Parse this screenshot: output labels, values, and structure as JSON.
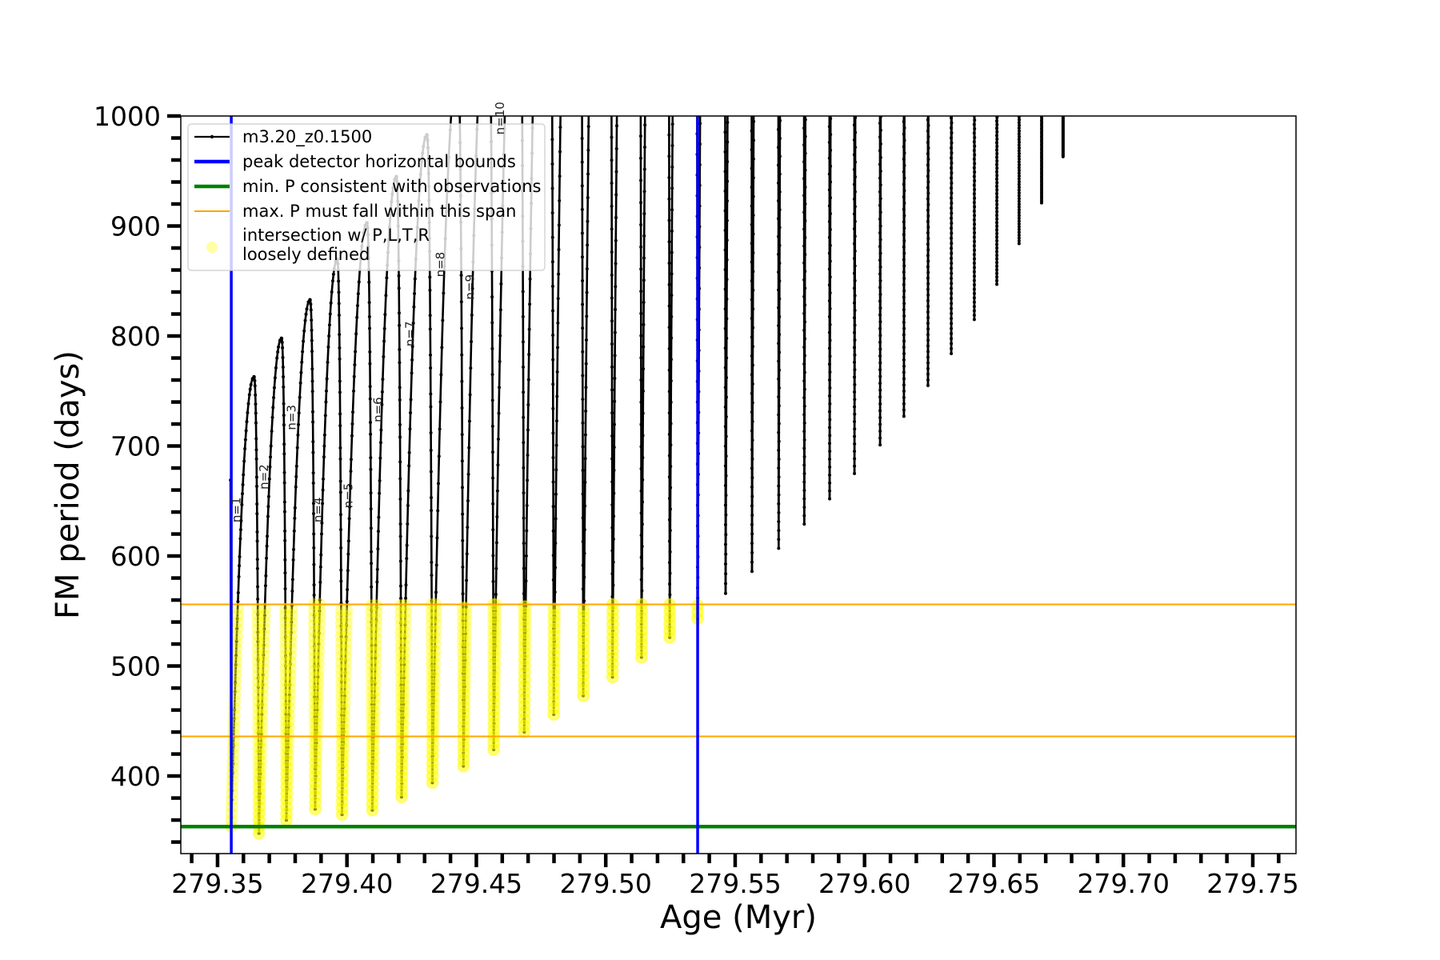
{
  "chart_data": {
    "type": "line",
    "title": "",
    "xlabel": "Age (Myr)",
    "ylabel": "FM period (days)",
    "xlim": [
      279.3358,
      279.7667
    ],
    "ylim": [
      329.5,
      1000
    ],
    "x_ticks": [
      "279.35",
      "279.40",
      "279.45",
      "279.50",
      "279.55",
      "279.60",
      "279.65",
      "279.70",
      "279.75"
    ],
    "x_tick_values": [
      279.35,
      279.4,
      279.45,
      279.5,
      279.55,
      279.6,
      279.65,
      279.7,
      279.75
    ],
    "x_minor_step": 0.01,
    "y_ticks": [
      "400",
      "500",
      "600",
      "700",
      "800",
      "900",
      "1000"
    ],
    "y_tick_values": [
      400,
      500,
      600,
      700,
      800,
      900,
      1000
    ],
    "y_minor_step": 20,
    "grid": false,
    "legend_placement": "upper-left",
    "legend": [
      {
        "label": "m3.20_z0.1500",
        "kind": "line-marker",
        "color": "#000000"
      },
      {
        "label": "peak detector horizontal bounds",
        "kind": "line",
        "color": "#0000ff"
      },
      {
        "label": "min. P consistent with observations",
        "kind": "line",
        "color": "#008000"
      },
      {
        "label": "max. P must fall within this span",
        "kind": "thin-line",
        "color": "#ffa500"
      },
      {
        "label": "intersection w/ P,L,T,R",
        "label2": "loosely defined",
        "kind": "marker",
        "color": "#ffff66"
      }
    ],
    "series": [
      {
        "name": "m3.20_z0.1500",
        "color": "#000000",
        "track_start": [
          279.355,
          669
        ],
        "cycles_note_fields": [
          "age_of_minimum",
          "min_period",
          "peak_period"
        ],
        "cycles": [
          [
            279.3553,
            354,
            763
          ],
          [
            279.366,
            348,
            798
          ],
          [
            279.3766,
            360,
            833
          ],
          [
            279.3877,
            370,
            870
          ],
          [
            279.3981,
            365,
            903
          ],
          [
            279.4098,
            369,
            945
          ],
          [
            279.4211,
            381,
            983
          ],
          [
            279.433,
            394,
            null
          ],
          [
            279.445,
            409,
            null
          ],
          [
            279.4567,
            424,
            null
          ],
          [
            279.4685,
            440,
            null
          ],
          [
            279.4799,
            456,
            null
          ],
          [
            279.4913,
            473,
            null
          ],
          [
            279.5026,
            490,
            null
          ],
          [
            279.5138,
            508,
            null
          ],
          [
            279.5247,
            526,
            null
          ],
          [
            279.5355,
            543,
            null
          ],
          [
            279.5463,
            566,
            null
          ],
          [
            279.5565,
            586,
            null
          ],
          [
            279.5668,
            607,
            null
          ],
          [
            279.5767,
            629,
            null
          ],
          [
            279.5865,
            652,
            null
          ],
          [
            279.5961,
            675,
            null
          ],
          [
            279.606,
            701,
            null
          ],
          [
            279.6152,
            727,
            null
          ],
          [
            279.6245,
            755,
            null
          ],
          [
            279.6335,
            784,
            null
          ],
          [
            279.6424,
            815,
            null
          ],
          [
            279.6511,
            847,
            null
          ],
          [
            279.6597,
            884,
            null
          ],
          [
            279.6684,
            921,
            null
          ],
          [
            279.6767,
            963,
            null
          ]
        ]
      }
    ],
    "vertical_lines": [
      {
        "x": 279.3553,
        "color": "#0000ff"
      },
      {
        "x": 279.5355,
        "color": "#0000ff"
      }
    ],
    "horizontal_lines": [
      {
        "y": 354,
        "color": "#008000",
        "role": "min"
      },
      {
        "y": 556,
        "color": "#ffa500",
        "role": "span-upper"
      },
      {
        "y": 436,
        "color": "#ffa500",
        "role": "span-lower"
      }
    ],
    "highlight": {
      "color": "#ffff00",
      "max_age": 279.5355,
      "max_period": 556
    },
    "annotations": [
      {
        "text": "n=1",
        "x": 279.3574,
        "y": 642
      },
      {
        "text": "n=2",
        "x": 279.3681,
        "y": 672
      },
      {
        "text": "n=3",
        "x": 279.3788,
        "y": 726
      },
      {
        "text": "n=4",
        "x": 279.389,
        "y": 642
      },
      {
        "text": "n=5",
        "x": 279.4007,
        "y": 655
      },
      {
        "text": "n=6",
        "x": 279.4121,
        "y": 733
      },
      {
        "text": "n=7",
        "x": 279.4245,
        "y": 802
      },
      {
        "text": "n=8",
        "x": 279.4362,
        "y": 865
      },
      {
        "text": "n=9",
        "x": 279.4477,
        "y": 930
      },
      {
        "text": "n=10",
        "x": 279.4593,
        "y": 998
      }
    ]
  }
}
